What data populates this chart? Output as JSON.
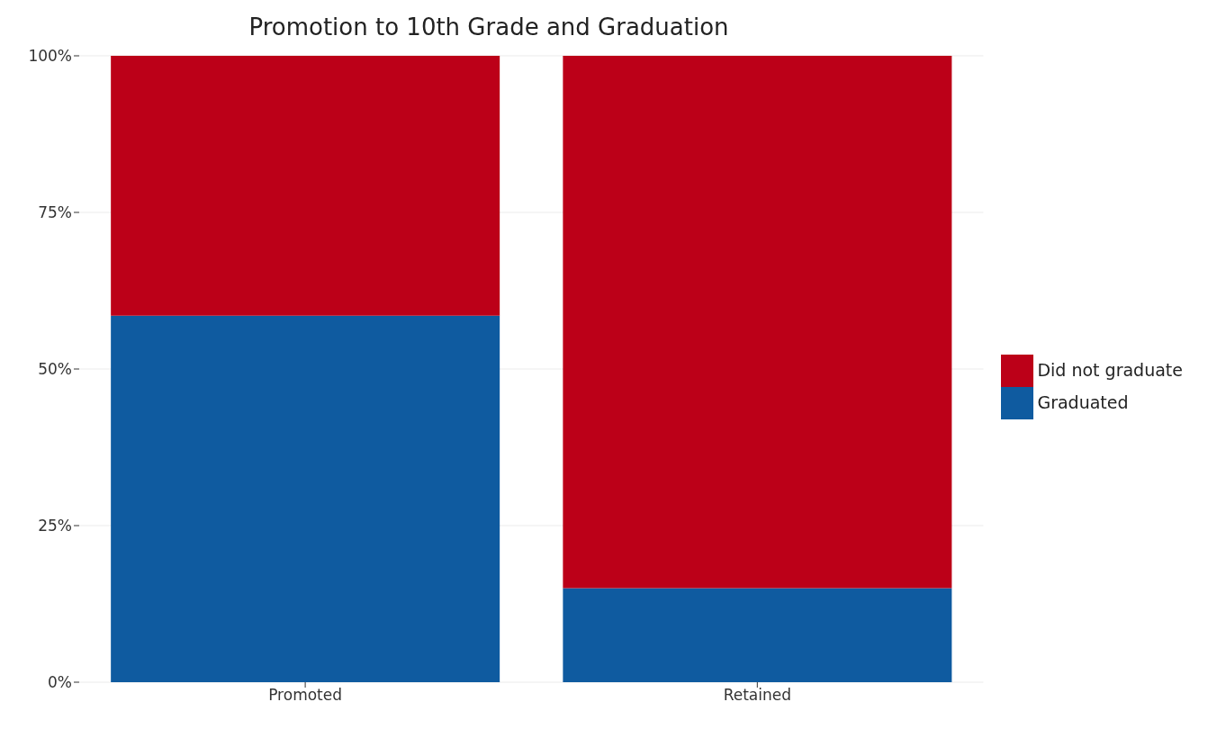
{
  "chart_data": {
    "type": "bar",
    "title": "Promotion to 10th Grade and Graduation",
    "categories": [
      "Promoted",
      "Retained"
    ],
    "series": [
      {
        "name": "Graduated",
        "color": "#0f5ba0",
        "values": [
          58.5,
          15
        ]
      },
      {
        "name": "Did not graduate",
        "color": "#bc0018",
        "values": [
          41.5,
          85
        ]
      }
    ],
    "stacked": true,
    "ylim": [
      0,
      100
    ],
    "yticks": [
      {
        "value": 0,
        "label": "0%"
      },
      {
        "value": 25,
        "label": "25%"
      },
      {
        "value": 50,
        "label": "50%"
      },
      {
        "value": 75,
        "label": "75%"
      },
      {
        "value": 100,
        "label": "100%"
      }
    ],
    "grid": "y",
    "legend": "right"
  }
}
